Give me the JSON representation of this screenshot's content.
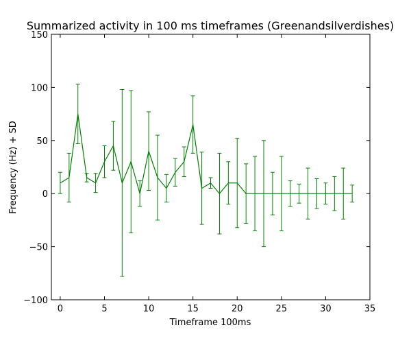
{
  "chart_data": {
    "type": "line",
    "title": "Summarized activity in 100 ms timeframes (Greenandsilverdishes)",
    "xlabel": "Timeframe 100ms",
    "ylabel": "Frequency (Hz) + SD",
    "xlim": [
      -1,
      35
    ],
    "ylim": [
      -100,
      150
    ],
    "xticks": [
      0,
      5,
      10,
      15,
      20,
      25,
      30,
      35
    ],
    "yticks": [
      -100,
      -50,
      0,
      50,
      100,
      150
    ],
    "grid": false,
    "color": "#008000",
    "series": [
      {
        "x": [
          0,
          1,
          2,
          3,
          4,
          5,
          6,
          7,
          8,
          9,
          10,
          11,
          12,
          13,
          14,
          15,
          16,
          17,
          18,
          19,
          20,
          21,
          22,
          23,
          24,
          25,
          26,
          27,
          28,
          29,
          30,
          31,
          32,
          33
        ],
        "y": [
          10,
          15,
          75,
          15,
          10,
          30,
          45,
          10,
          30,
          0,
          40,
          15,
          5,
          20,
          30,
          65,
          5,
          10,
          0,
          10,
          10,
          0,
          0,
          0,
          0,
          0,
          0,
          0,
          0,
          0,
          0,
          0,
          0,
          0
        ],
        "sd": [
          10,
          23,
          28,
          4,
          9,
          15,
          23,
          88,
          67,
          12,
          37,
          40,
          13,
          13,
          14,
          27,
          34,
          5,
          38,
          20,
          42,
          28,
          35,
          50,
          20,
          35,
          12,
          9,
          24,
          14,
          10,
          16,
          24,
          8
        ]
      }
    ]
  }
}
